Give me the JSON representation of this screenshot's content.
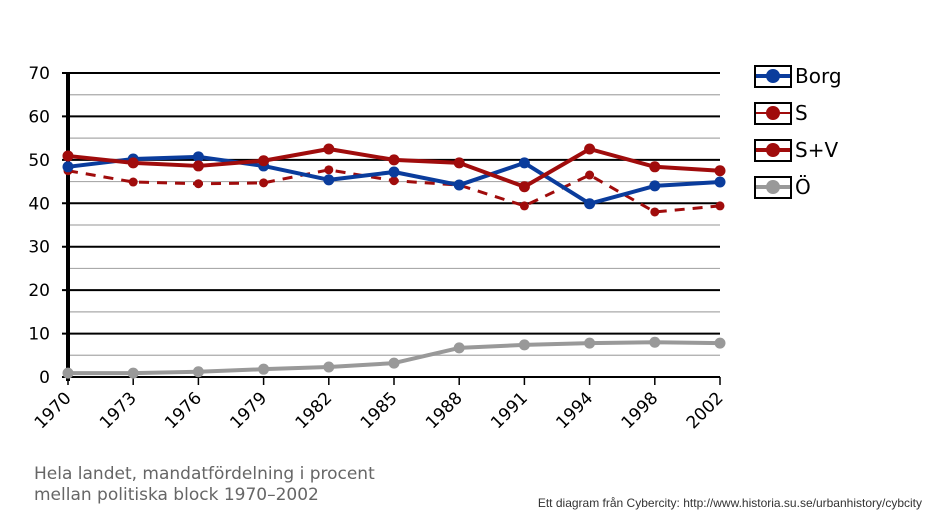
{
  "chart_data": {
    "type": "line",
    "title": "",
    "xlabel": "",
    "ylabel": "",
    "categories": [
      "1970",
      "1973",
      "1976",
      "1979",
      "1982",
      "1985",
      "1988",
      "1991",
      "1994",
      "1998",
      "2002"
    ],
    "ylim": [
      0,
      70
    ],
    "yticks": [
      0,
      10,
      20,
      30,
      40,
      50,
      60,
      70
    ],
    "grid": true,
    "legend_position": "right",
    "series": [
      {
        "name": "Borg",
        "color": "#0a3c9c",
        "dashed": false,
        "values": [
          48.4,
          50.2,
          50.7,
          48.6,
          45.4,
          47.2,
          44.2,
          49.3,
          39.9,
          44.0,
          44.9
        ]
      },
      {
        "name": "S",
        "color": "#a00c0c",
        "dashed": true,
        "values": [
          47.5,
          44.9,
          44.5,
          44.7,
          47.7,
          45.2,
          44.2,
          39.4,
          46.5,
          38.0,
          39.4
        ]
      },
      {
        "name": "S+V",
        "color": "#a00c0c",
        "dashed": false,
        "values": [
          50.9,
          49.3,
          48.6,
          49.8,
          52.5,
          50.0,
          49.3,
          43.8,
          52.5,
          48.4,
          47.5
        ]
      },
      {
        "name": "Ö",
        "color": "#999999",
        "dashed": false,
        "values": [
          0.9,
          0.9,
          1.2,
          1.8,
          2.3,
          3.2,
          6.7,
          7.4,
          7.8,
          8.0,
          7.8
        ]
      }
    ]
  },
  "caption": "Hela landet, mandatfördelning i procent\nmellan politiska block 1970–2002",
  "credit": "Ett diagram från Cybercity: http://www.historia.su.se/urbanhistory/cybcity"
}
